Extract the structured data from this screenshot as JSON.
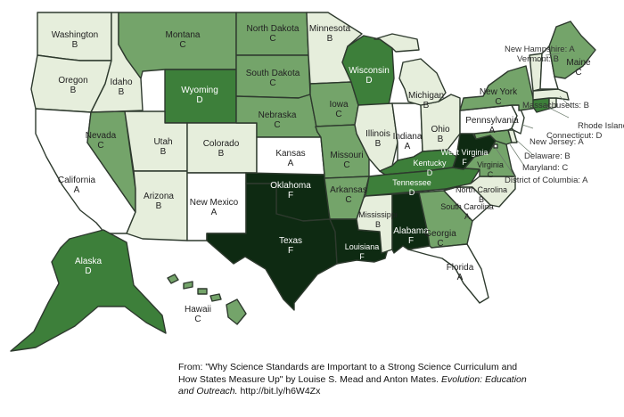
{
  "colors": {
    "A": "#ffffff",
    "B": "#e6eedc",
    "C": "#74a46a",
    "D": "#3d7f3a",
    "F": "#0e2a12",
    "border": "#2e3a2e"
  },
  "states": {
    "WA": {
      "name": "Washington",
      "grade": "B"
    },
    "OR": {
      "name": "Oregon",
      "grade": "B"
    },
    "CA": {
      "name": "California",
      "grade": "A"
    },
    "ID": {
      "name": "Idaho",
      "grade": "B"
    },
    "NV": {
      "name": "Nevada",
      "grade": "C"
    },
    "MT": {
      "name": "Montana",
      "grade": "C"
    },
    "WY": {
      "name": "Wyoming",
      "grade": "D"
    },
    "UT": {
      "name": "Utah",
      "grade": "B"
    },
    "AZ": {
      "name": "Arizona",
      "grade": "B"
    },
    "CO": {
      "name": "Colorado",
      "grade": "B"
    },
    "NM": {
      "name": "New Mexico",
      "grade": "A"
    },
    "ND": {
      "name": "North Dakota",
      "grade": "C"
    },
    "SD": {
      "name": "South Dakota",
      "grade": "C"
    },
    "NE": {
      "name": "Nebraska",
      "grade": "C"
    },
    "KS": {
      "name": "Kansas",
      "grade": "A"
    },
    "OK": {
      "name": "Oklahoma",
      "grade": "F"
    },
    "TX": {
      "name": "Texas",
      "grade": "F"
    },
    "MN": {
      "name": "Minnesota",
      "grade": "B"
    },
    "IA": {
      "name": "Iowa",
      "grade": "C"
    },
    "MO": {
      "name": "Missouri",
      "grade": "C"
    },
    "AR": {
      "name": "Arkansas",
      "grade": "C"
    },
    "LA": {
      "name": "Louisiana",
      "grade": "F"
    },
    "WI": {
      "name": "Wisconsin",
      "grade": "D"
    },
    "IL": {
      "name": "Illinois",
      "grade": "B"
    },
    "MI": {
      "name": "Michigan",
      "grade": "B"
    },
    "IN": {
      "name": "Indiana",
      "grade": "A"
    },
    "OH": {
      "name": "Ohio",
      "grade": "B"
    },
    "KY": {
      "name": "Kentucky",
      "grade": "D"
    },
    "TN": {
      "name": "Tennessee",
      "grade": "D"
    },
    "MS": {
      "name": "Mississippi",
      "grade": "B"
    },
    "AL": {
      "name": "Alabama",
      "grade": "F"
    },
    "GA": {
      "name": "Georgia",
      "grade": "C"
    },
    "FL": {
      "name": "Florida",
      "grade": "A"
    },
    "SC": {
      "name": "South Carolina",
      "grade": "A"
    },
    "NC": {
      "name": "North Carolina",
      "grade": "B"
    },
    "VA": {
      "name": "Virginia",
      "grade": "C"
    },
    "WV": {
      "name": "West Virginia",
      "grade": "F"
    },
    "PA": {
      "name": "Pennsylvania",
      "grade": "A"
    },
    "NY": {
      "name": "New York",
      "grade": "C"
    },
    "ME": {
      "name": "Maine",
      "grade": "C"
    },
    "AK": {
      "name": "Alaska",
      "grade": "D"
    },
    "HI": {
      "name": "Hawaii",
      "grade": "C"
    },
    "NH": {
      "name": "New Hampshire",
      "grade": "A"
    },
    "VT": {
      "name": "Vermont",
      "grade": "B"
    },
    "MA": {
      "name": "Massachusetts",
      "grade": "B"
    },
    "RI": {
      "name": "Rhode Island",
      "grade": "B"
    },
    "CT": {
      "name": "Connecticut",
      "grade": "D"
    },
    "NJ": {
      "name": "New Jersey",
      "grade": "A"
    },
    "DE": {
      "name": "Delaware",
      "grade": "B"
    },
    "MD": {
      "name": "Maryland",
      "grade": "C"
    },
    "DC": {
      "name": "District of Columbia",
      "grade": "A"
    }
  },
  "citation": {
    "prefix": "From: \"Why Science Standards are Important to a Strong Science Curriculum and How States Measure Up\" by Louise S. Mead and Anton Mates.",
    "journal": "Evolution: Education and Outreach.",
    "link": "http://bit.ly/h6W4Zx"
  }
}
